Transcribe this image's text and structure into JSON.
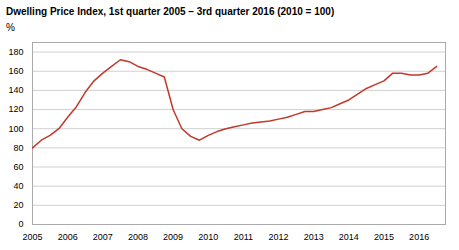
{
  "chart_data": {
    "type": "line",
    "title": "Dwelling Price Index, 1st quarter 2005 – 3rd quarter 2016 (2010 = 100)",
    "ylabel": "%",
    "x": [
      2005.0,
      2005.25,
      2005.5,
      2005.75,
      2006.0,
      2006.25,
      2006.5,
      2006.75,
      2007.0,
      2007.25,
      2007.5,
      2007.75,
      2008.0,
      2008.25,
      2008.5,
      2008.75,
      2009.0,
      2009.25,
      2009.5,
      2009.75,
      2010.0,
      2010.25,
      2010.5,
      2010.75,
      2011.0,
      2011.25,
      2011.5,
      2011.75,
      2012.0,
      2012.25,
      2012.5,
      2012.75,
      2013.0,
      2013.25,
      2013.5,
      2013.75,
      2014.0,
      2014.25,
      2014.5,
      2014.75,
      2015.0,
      2015.25,
      2015.5,
      2015.75,
      2016.0,
      2016.25,
      2016.5
    ],
    "values": [
      80,
      88,
      93,
      100,
      112,
      123,
      138,
      150,
      158,
      165,
      172,
      170,
      165,
      162,
      158,
      154,
      120,
      100,
      92,
      88,
      93,
      97,
      100,
      102,
      104,
      106,
      107,
      108,
      110,
      112,
      115,
      118,
      118,
      120,
      122,
      126,
      130,
      136,
      142,
      146,
      150,
      158,
      158,
      156,
      156,
      158,
      165
    ],
    "color": "#c0392b",
    "xlim": [
      2005,
      2016.75
    ],
    "xticks": [
      2005,
      2006,
      2007,
      2008,
      2009,
      2010,
      2011,
      2012,
      2013,
      2014,
      2015,
      2016
    ],
    "ylim": [
      0,
      190
    ],
    "yticks": [
      0,
      20,
      40,
      60,
      80,
      100,
      120,
      140,
      160,
      180
    ],
    "grid": true
  }
}
